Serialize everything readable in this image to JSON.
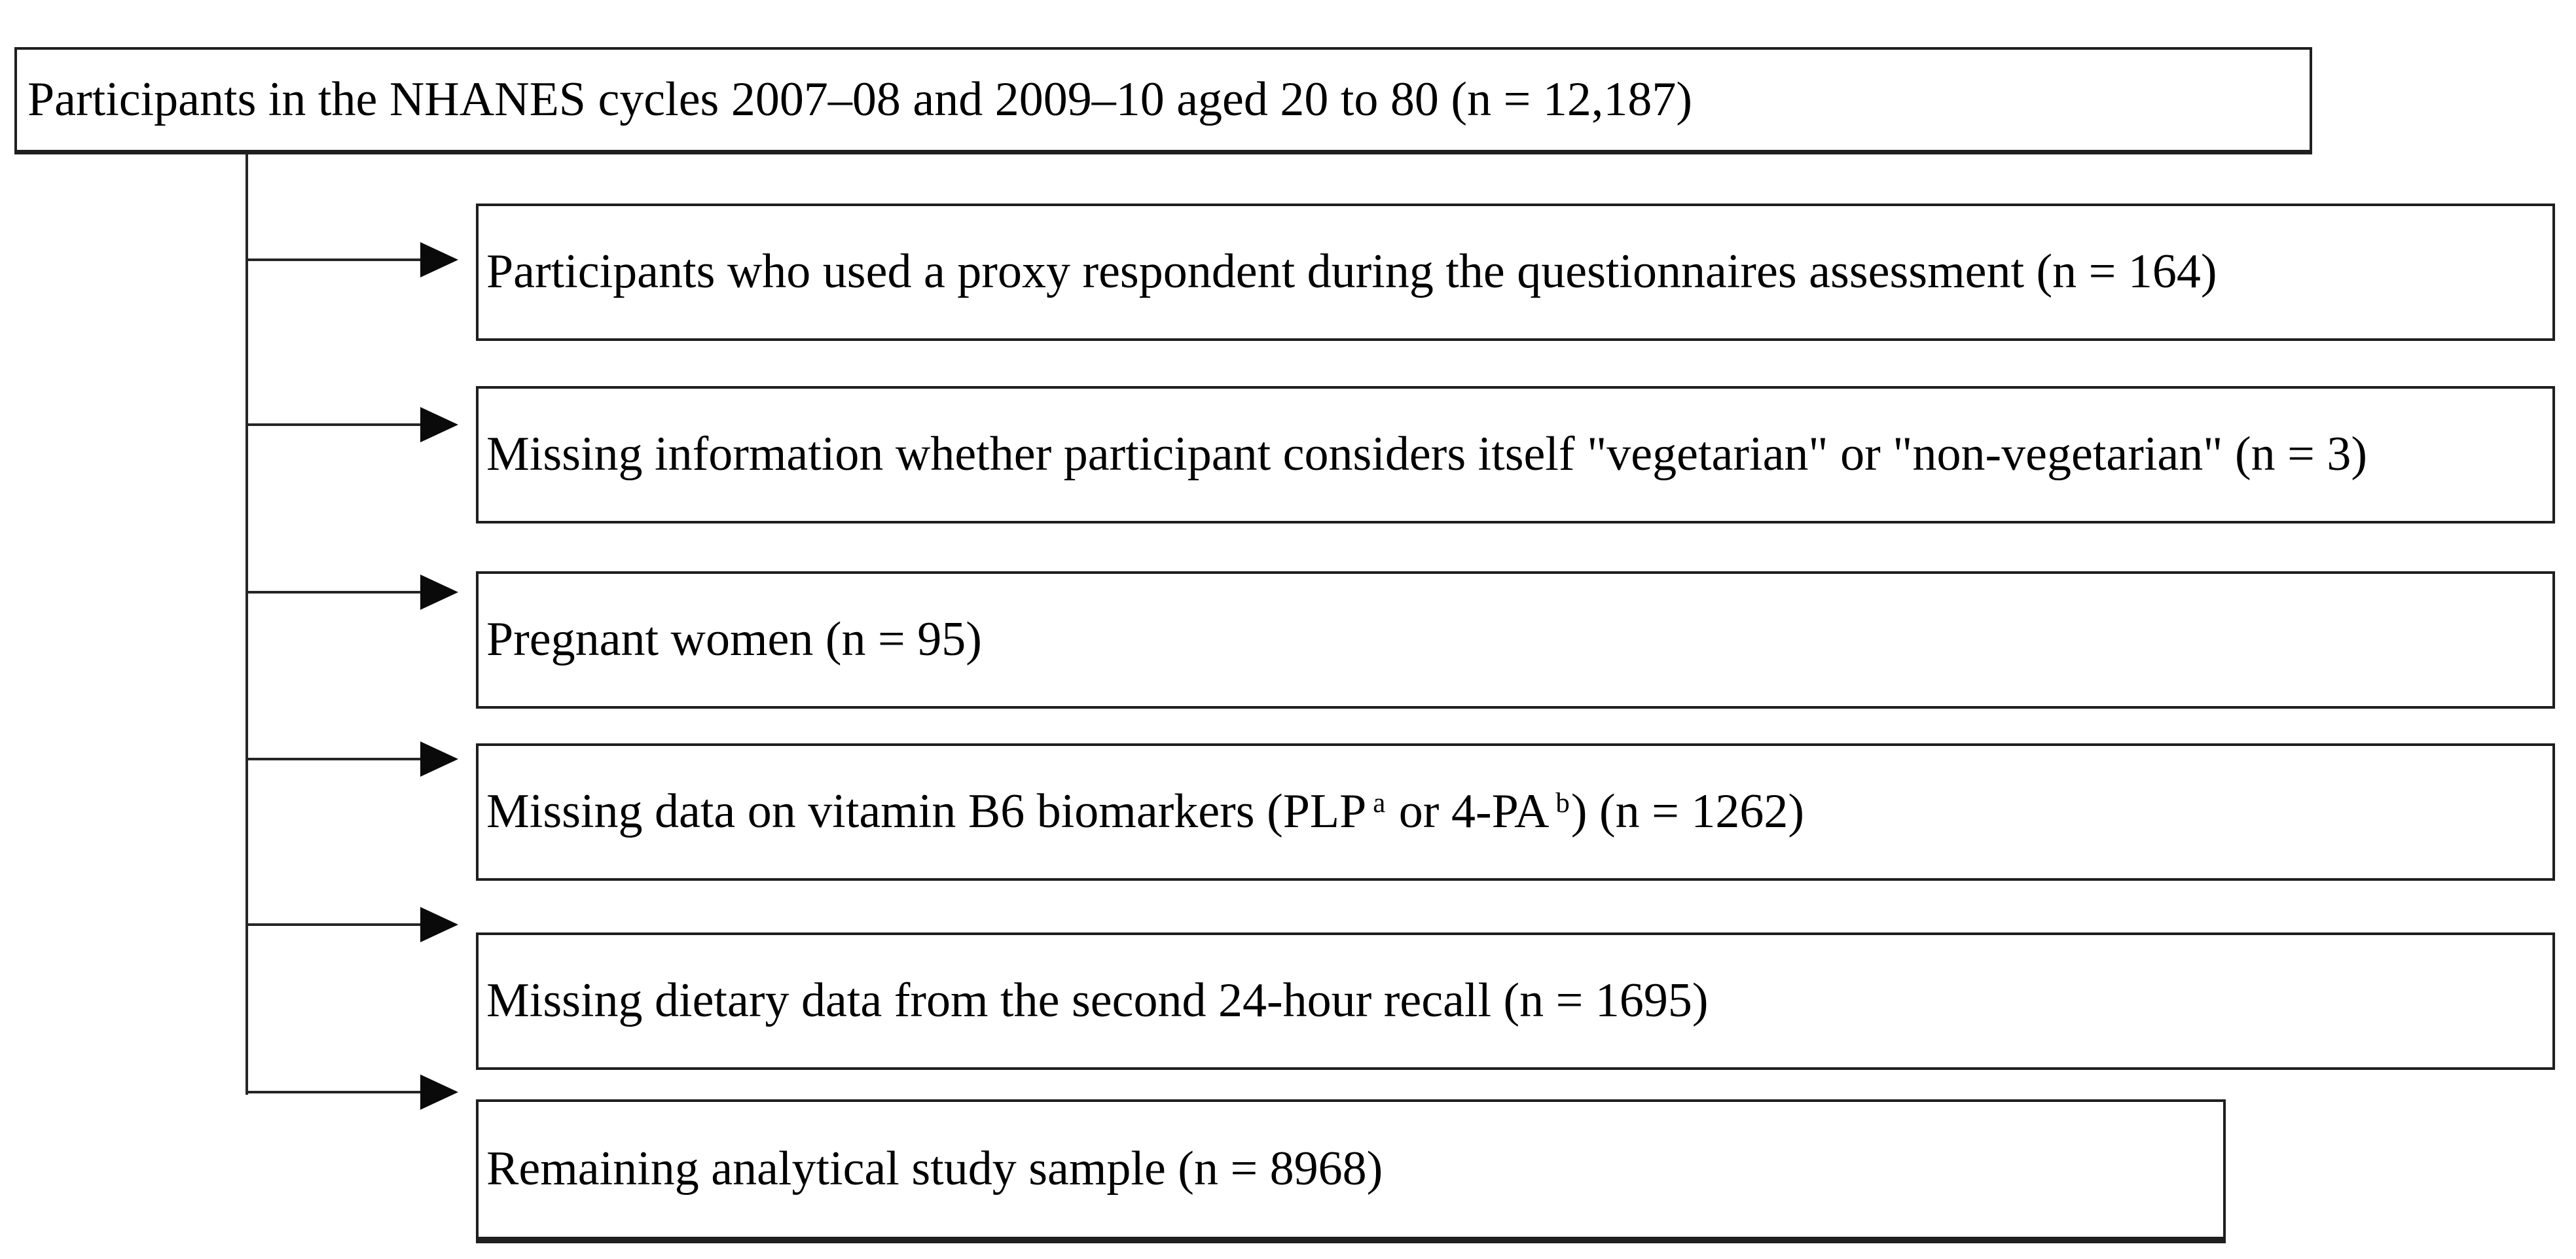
{
  "page": {
    "background": "#ffffff",
    "line_color": "#262626",
    "border_color": "#1f1f1f",
    "text_color": "#000000"
  },
  "flowchart": {
    "source_box": {
      "text": "Participants in the NHANES cycles 2007–08 and 2009–10 aged 20 to 80 (n = 12,187)",
      "n": "12,187"
    },
    "exclusion_boxes": [
      {
        "text": "Participants who used a proxy respondent during the questionnaires assessment (n = 164)",
        "n": "164"
      },
      {
        "text": "Missing information whether participant considers itself \"vegetarian\" or \"non-vegetarian\" (n = 3)",
        "n": "3"
      },
      {
        "text": "Pregnant women (n = 95)",
        "n": "95"
      },
      {
        "text": "Missing data on vitamin B6 biomarkers (PLP a or 4-PA b) (n = 1262)",
        "n": "1262",
        "parts": {
          "before_sup_a": "Missing data on vitamin B6 biomarkers (PLP",
          "sup_a": "a",
          "between": " or 4-PA",
          "sup_b": "b",
          "after": ") (n = 1262)"
        }
      },
      {
        "text": "Missing dietary data from the second 24-hour recall (n = 1695)",
        "n": "1695"
      }
    ],
    "result_box": {
      "text": "Remaining analytical study sample (n = 8968)",
      "n": "8968"
    }
  }
}
